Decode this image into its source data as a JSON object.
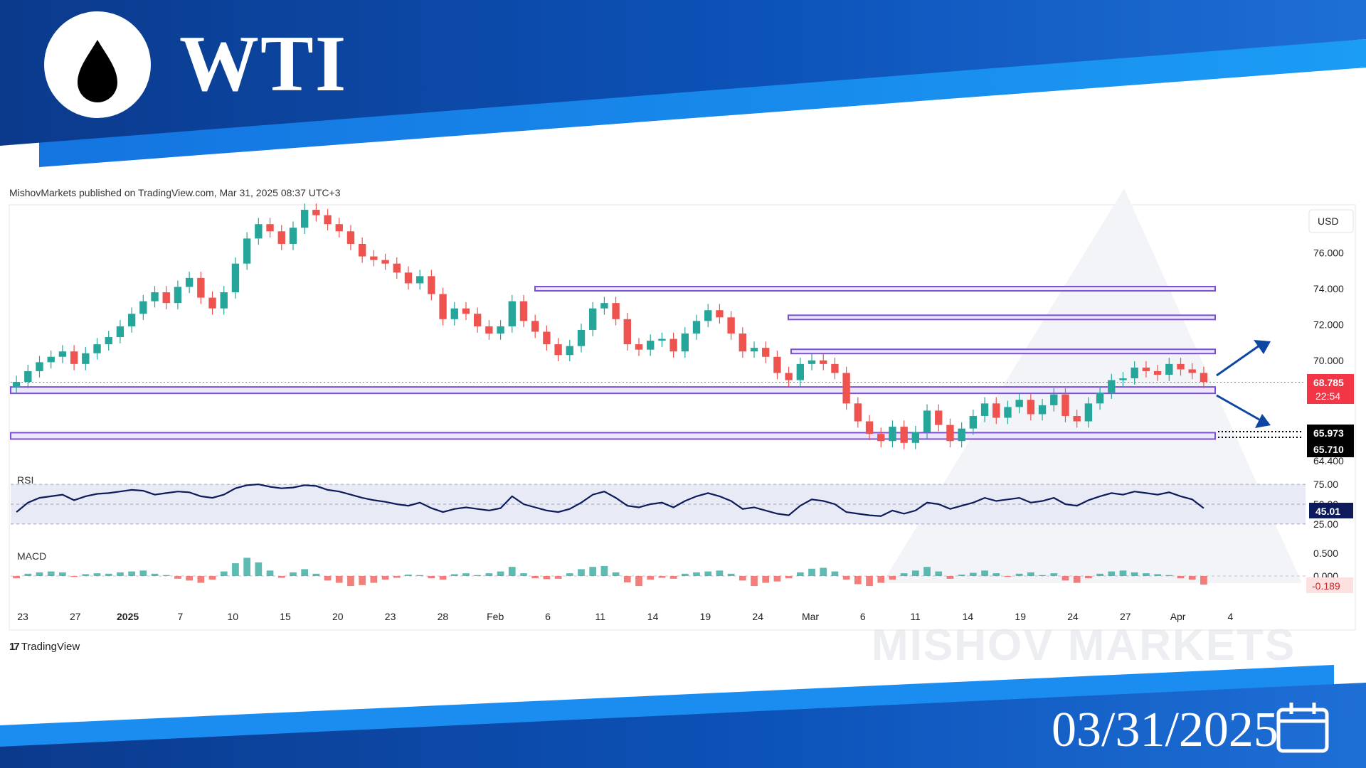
{
  "header": {
    "title": "WTI",
    "icon": "oil-drop-icon",
    "colors": {
      "banner_dark": "#0b3a8c",
      "banner_light": "#1b8cf0"
    }
  },
  "footer": {
    "date": "03/31/2025",
    "icon": "calendar-icon"
  },
  "published_text": "MishovMarkets published on TradingView.com, Mar 31, 2025 08:37 UTC+3",
  "branding": {
    "tradingview": "TradingView",
    "watermark": "MISHOV  MARKETS"
  },
  "chart_data": {
    "type": "candlestick",
    "currency": "USD",
    "x_tick_labels": [
      "23",
      "27",
      "2025",
      "7",
      "10",
      "15",
      "20",
      "23",
      "28",
      "Feb",
      "6",
      "11",
      "14",
      "19",
      "24",
      "Mar",
      "6",
      "11",
      "14",
      "19",
      "24",
      "27",
      "Apr",
      "4"
    ],
    "price_axis": {
      "ylim": [
        64.4,
        78.6
      ],
      "ticks": [
        "76.000",
        "74.000",
        "72.000",
        "70.000",
        "64.400"
      ]
    },
    "price_series_close": [
      68.8,
      69.4,
      69.9,
      70.2,
      70.5,
      69.8,
      70.4,
      70.9,
      71.3,
      71.9,
      72.6,
      73.3,
      73.8,
      73.2,
      74.1,
      74.6,
      73.5,
      72.9,
      73.8,
      75.4,
      76.8,
      77.6,
      77.2,
      76.5,
      77.4,
      78.4,
      78.1,
      77.6,
      77.2,
      76.5,
      75.8,
      75.6,
      75.4,
      74.9,
      74.3,
      74.7,
      73.7,
      72.3,
      72.9,
      72.6,
      71.9,
      71.5,
      71.9,
      73.3,
      72.2,
      71.6,
      70.9,
      70.3,
      70.8,
      71.7,
      72.9,
      73.2,
      72.3,
      70.9,
      70.6,
      71.1,
      71.2,
      70.5,
      71.5,
      72.2,
      72.8,
      72.4,
      71.5,
      70.5,
      70.7,
      70.2,
      69.3,
      68.9,
      69.8,
      70.0,
      69.8,
      69.3,
      67.6,
      66.6,
      65.9,
      65.5,
      66.3,
      65.4,
      66.0,
      67.2,
      66.4,
      65.5,
      66.2,
      66.9,
      67.6,
      66.8,
      67.4,
      67.8,
      67.0,
      67.5,
      68.1,
      66.9,
      66.6,
      67.6,
      68.2,
      68.9,
      69.0,
      69.6,
      69.4,
      69.2,
      69.8,
      69.5,
      69.3,
      68.8
    ],
    "horizontal_levels": [
      74.0,
      72.4,
      70.5,
      68.4,
      65.85
    ],
    "current_price": {
      "value": "68.785",
      "countdown": "22:54"
    },
    "level_labels": [
      "65.973",
      "65.710"
    ],
    "rsi": {
      "label": "RSI",
      "value": "45.01",
      "bands": [
        "75.00",
        "50.00",
        "25.00"
      ],
      "values": [
        40,
        52,
        58,
        60,
        62,
        55,
        60,
        63,
        64,
        66,
        68,
        67,
        62,
        64,
        66,
        65,
        60,
        58,
        62,
        70,
        74,
        75,
        72,
        70,
        71,
        74,
        73,
        68,
        66,
        62,
        58,
        55,
        53,
        50,
        48,
        52,
        45,
        40,
        44,
        46,
        44,
        42,
        45,
        60,
        50,
        46,
        42,
        40,
        44,
        52,
        62,
        66,
        58,
        48,
        46,
        50,
        52,
        46,
        54,
        60,
        64,
        60,
        54,
        44,
        46,
        42,
        38,
        36,
        48,
        56,
        54,
        50,
        40,
        38,
        36,
        35,
        42,
        38,
        42,
        52,
        50,
        44,
        48,
        52,
        58,
        54,
        56,
        58,
        52,
        54,
        58,
        50,
        48,
        55,
        60,
        64,
        62,
        66,
        64,
        62,
        65,
        60,
        56,
        45
      ]
    },
    "macd": {
      "label": "MACD",
      "value": "-0.189",
      "ticks": [
        "0.500",
        "0.000"
      ],
      "values": [
        -0.05,
        0.05,
        0.08,
        0.1,
        0.08,
        -0.02,
        0.04,
        0.06,
        0.05,
        0.08,
        0.1,
        0.12,
        0.05,
        0.02,
        -0.06,
        -0.1,
        -0.15,
        -0.08,
        0.1,
        0.28,
        0.4,
        0.3,
        0.12,
        -0.04,
        0.08,
        0.15,
        0.05,
        -0.1,
        -0.15,
        -0.22,
        -0.2,
        -0.15,
        -0.08,
        -0.04,
        0.03,
        0.02,
        -0.05,
        -0.08,
        0.04,
        0.06,
        0.02,
        0.06,
        0.1,
        0.2,
        0.06,
        -0.05,
        -0.07,
        -0.06,
        0.06,
        0.15,
        0.2,
        0.22,
        0.08,
        -0.14,
        -0.22,
        -0.08,
        -0.04,
        -0.06,
        0.05,
        0.08,
        0.1,
        0.12,
        0.05,
        -0.1,
        -0.22,
        -0.15,
        -0.12,
        -0.05,
        0.08,
        0.16,
        0.18,
        0.1,
        -0.08,
        -0.18,
        -0.22,
        -0.15,
        -0.08,
        0.06,
        0.12,
        0.2,
        0.1,
        -0.06,
        0.03,
        0.07,
        0.12,
        0.06,
        -0.02,
        0.05,
        0.08,
        0.02,
        0.06,
        -0.1,
        -0.15,
        -0.05,
        0.05,
        0.1,
        0.12,
        0.08,
        0.06,
        0.04,
        0.02,
        -0.05,
        -0.08,
        -0.19
      ]
    },
    "colors": {
      "up": "#26a69a",
      "down": "#ef5350",
      "level": "#7b4fd6",
      "rsi_line": "#0d1b5c",
      "badge": "#f23645"
    }
  }
}
